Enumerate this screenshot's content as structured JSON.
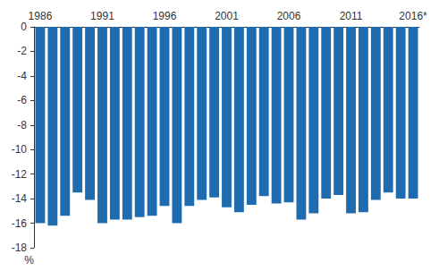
{
  "chart_data": {
    "type": "bar",
    "categories": [
      "1986",
      null,
      null,
      null,
      null,
      "1991",
      null,
      null,
      null,
      null,
      "1996",
      null,
      null,
      null,
      null,
      "2001",
      null,
      null,
      null,
      null,
      "2006",
      null,
      null,
      null,
      null,
      "2011",
      null,
      null,
      null,
      null,
      "2016*"
    ],
    "values": [
      -16.0,
      -16.2,
      -15.4,
      -13.5,
      -14.1,
      -16.0,
      -15.7,
      -15.7,
      -15.5,
      -15.4,
      -14.6,
      -16.0,
      -14.6,
      -14.1,
      -13.9,
      -14.7,
      -15.1,
      -14.5,
      -13.8,
      -14.4,
      -14.3,
      -15.7,
      -15.2,
      -14.0,
      -13.7,
      -15.2,
      -15.1,
      -14.1,
      -13.5,
      -14.0,
      -14.0
    ],
    "color": "#1f6bb0",
    "ylabel": "%",
    "ylim": [
      -18,
      0
    ],
    "yticks": [
      -18,
      -16,
      -14,
      -12,
      -10,
      -8,
      -6,
      -4,
      -2,
      0
    ],
    "grid": false
  }
}
